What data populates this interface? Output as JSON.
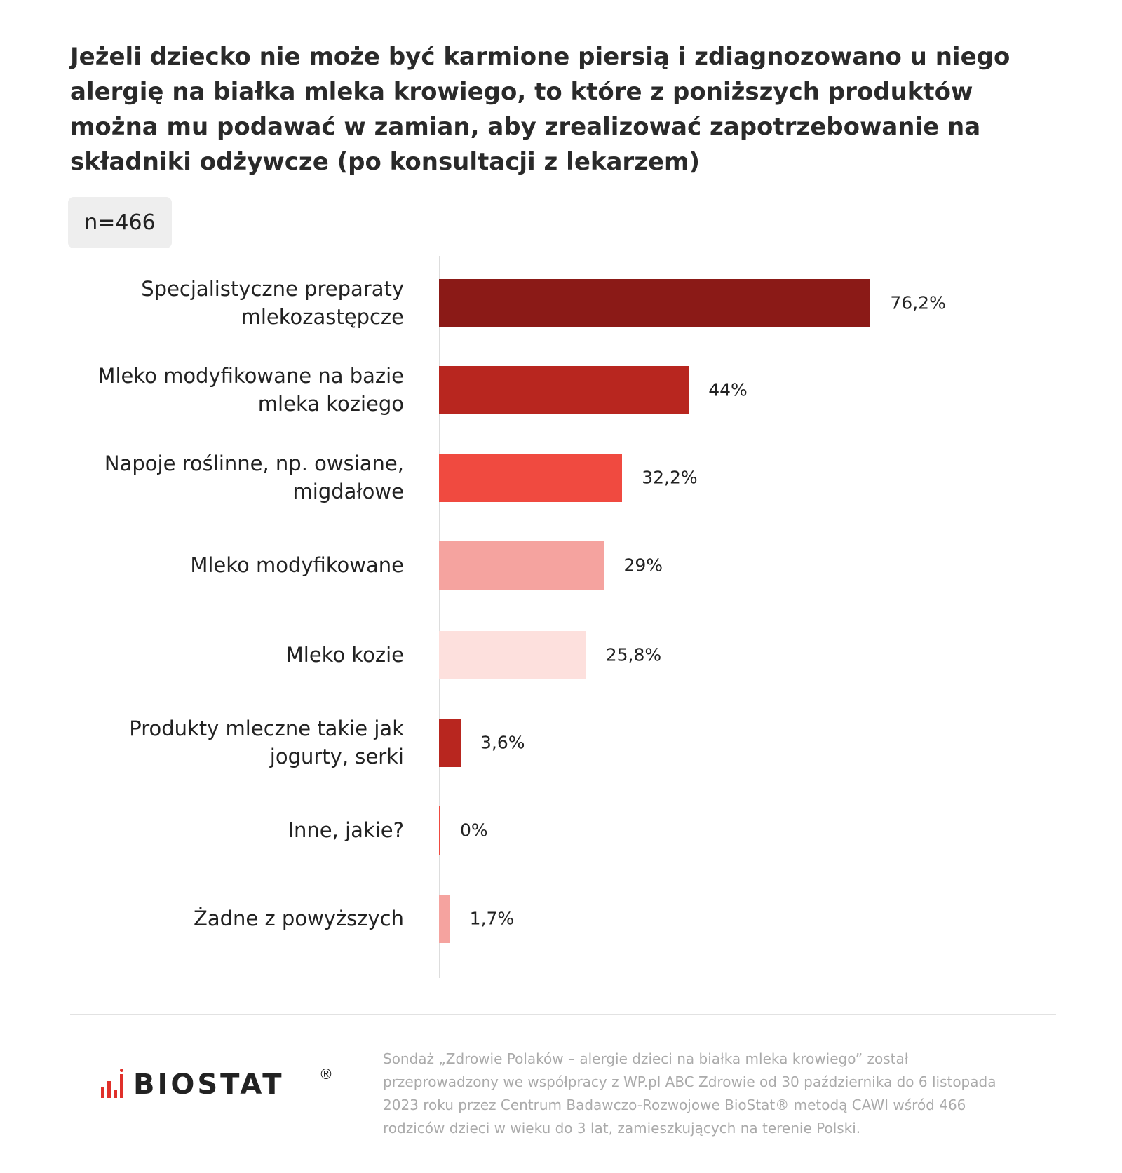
{
  "chart_data": {
    "type": "barh",
    "title": "Jeżeli dziecko nie może być karmione piersią i zdiagnozowano u niego alergię na białka mleka krowiego, to które z poniższych produktów można mu podawać w zamian, aby zrealizować zapotrzebowanie na składniki odżywcze (po konsultacji z lekarzem)",
    "subtitle": "n=466",
    "categories": [
      "Specjalistyczne preparaty mlekozastępcze",
      "Mleko modyfikowane na bazie mleka koziego",
      "Napoje roślinne, np. owsiane, migdałowe",
      "Mleko modyfikowane",
      "Mleko kozie",
      "Produkty mleczne takie jak jogurty, serki",
      "Inne, jakie?",
      "Żadne z powyższych"
    ],
    "values": [
      76.2,
      44,
      32.2,
      29,
      25.8,
      3.6,
      0,
      1.7
    ],
    "value_labels": [
      "76,2%",
      "44%",
      "32,2%",
      "29%",
      "25,8%",
      "3,6%",
      "0%",
      "1,7%"
    ],
    "colors": [
      "#8b1a17",
      "#b8261f",
      "#f04a40",
      "#f5a39f",
      "#fde0dd",
      "#b8261f",
      "#f04a40",
      "#f5a39f"
    ],
    "xlim": [
      0,
      100
    ]
  },
  "footer": {
    "logo": "BIOSTAT",
    "logo_mark": "®",
    "note": "Sondaż „Zdrowie Polaków – alergie dzieci na białka mleka krowiego” został przeprowadzony we współpracy z WP.pl ABC Zdrowie od 30 października do 6 listopada 2023 roku przez Centrum Badawczo-Rozwojowe BioStat® metodą CAWI wśród 466 rodziców dzieci w wieku do 3 lat, zamieszkujących na terenie Polski."
  }
}
